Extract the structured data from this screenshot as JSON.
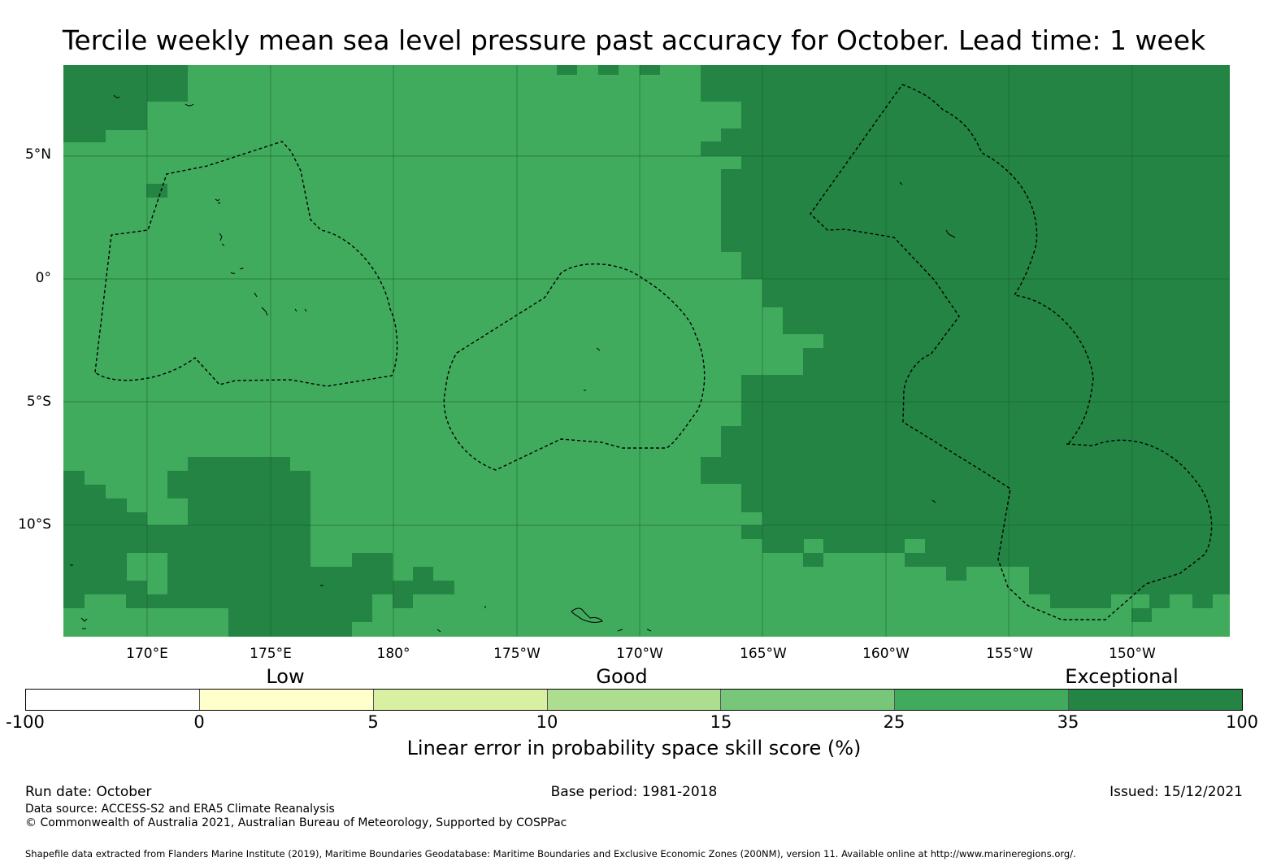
{
  "title": "Tercile weekly mean sea level pressure past accuracy for October. Lead time: 1 week",
  "map": {
    "lat_labels": [
      "5°N",
      "0°",
      "5°S",
      "10°S"
    ],
    "lon_labels": [
      "170°E",
      "175°E",
      "180°",
      "175°W",
      "170°W",
      "165°W",
      "160°W",
      "155°W",
      "150°W"
    ],
    "colors": {
      "class_25_35": "#41ab5d",
      "class_35_100": "#238443",
      "gridline": "#1a5e2e",
      "coast": "#000000",
      "eez_line": "#000000"
    },
    "features": [
      "skill score raster",
      "coastlines",
      "EEZ boundaries (dashed)"
    ]
  },
  "colorbar": {
    "category_labels": [
      "Low",
      "Good",
      "Exceptional"
    ],
    "ticks": [
      "-100",
      "0",
      "5",
      "10",
      "15",
      "25",
      "35",
      "100"
    ],
    "colors": [
      "#ffffff",
      "#ffffcc",
      "#d9f0a3",
      "#addd8e",
      "#78c679",
      "#41ab5d",
      "#238443"
    ],
    "title": "Linear error in probability space skill score (%)"
  },
  "footer": {
    "run_date": "Run date: October",
    "base_period": "Base period: 1981-2018",
    "issued": "Issued: 15/12/2021",
    "data_source": "Data source: ACCESS-S2 and ERA5 Climate Reanalysis",
    "copyright": "© Commonwealth of Australia 2021, Australian Bureau of Meteorology, Supported by COSPPac",
    "shapefile": "Shapefile data extracted from Flanders Marine Institute (2019), Maritime Boundaries Geodatabase: Maritime Boundaries and Exclusive Economic Zones (200NM), version 11. Available online at http://www.marineregions.org/."
  }
}
